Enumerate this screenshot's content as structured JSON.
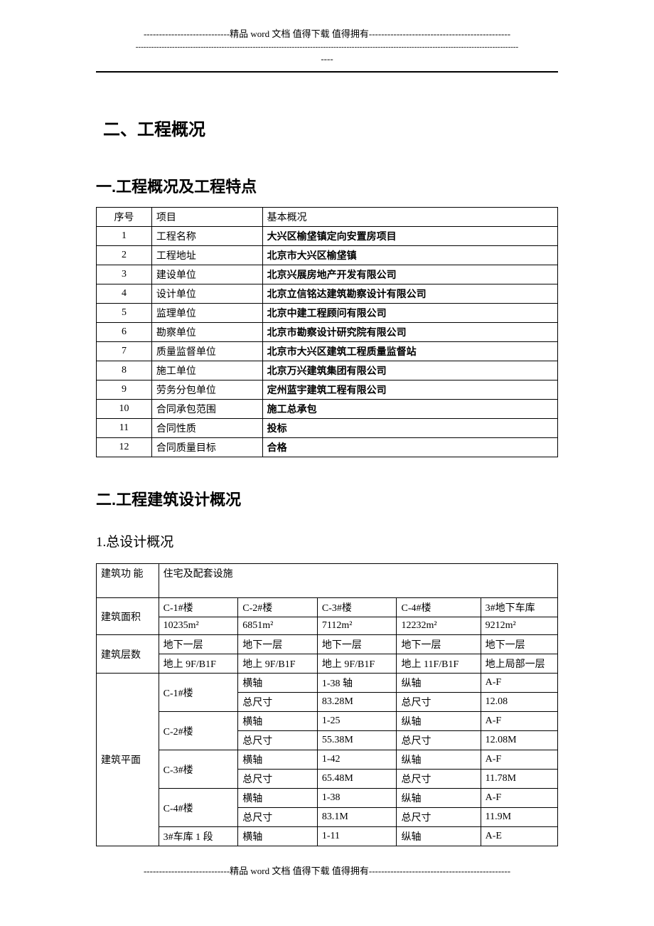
{
  "decor": {
    "dashes_left": "----------------------------",
    "dashes_right": "----------------------------------------------",
    "mid_text": "精品 word 文档  值得下载  值得拥有",
    "long_dashes": "---------------------------------------------------------------------------------------------------------------------------------------------------",
    "tail": "----"
  },
  "headings": {
    "section": "二、工程概况",
    "sub1": "一.工程概况及工程特点",
    "sub2": "二.工程建筑设计概况",
    "sub3": "1.总设计概况"
  },
  "table1": {
    "headers": {
      "seq": "序号",
      "item": "项目",
      "desc": "基本概况"
    },
    "rows": [
      {
        "seq": "1",
        "item": "工程名称",
        "desc": "大兴区榆垡镇定向安置房项目"
      },
      {
        "seq": "2",
        "item": "工程地址",
        "desc": "北京市大兴区榆垡镇"
      },
      {
        "seq": "3",
        "item": "建设单位",
        "desc": "北京兴展房地产开发有限公司"
      },
      {
        "seq": "4",
        "item": "设计单位",
        "desc": "北京立信铭达建筑勘察设计有限公司"
      },
      {
        "seq": "5",
        "item": "监理单位",
        "desc": "北京中建工程顾问有限公司"
      },
      {
        "seq": "6",
        "item": "勘察单位",
        "desc": "北京市勘察设计研究院有限公司"
      },
      {
        "seq": "7",
        "item": "质量监督单位",
        "desc": "北京市大兴区建筑工程质量监督站"
      },
      {
        "seq": "8",
        "item": "施工单位",
        "desc": "北京万兴建筑集团有限公司"
      },
      {
        "seq": "9",
        "item": "劳务分包单位",
        "desc": "定州蓝宇建筑工程有限公司"
      },
      {
        "seq": "10",
        "item": "合同承包范围",
        "desc": "施工总承包"
      },
      {
        "seq": "11",
        "item": "合同性质",
        "desc": "投标"
      },
      {
        "seq": "12",
        "item": "合同质量目标",
        "desc": "合格"
      }
    ]
  },
  "table2": {
    "labels": {
      "func": "建筑功  能",
      "func_val": "住宅及配套设施",
      "area": "建筑面积",
      "floors": "建筑层数",
      "plan": "建筑平面",
      "haxis": "横轴",
      "vaxis": "纵轴",
      "total": "总尺寸",
      "b1": "C-1#楼",
      "b2": "C-2#楼",
      "b3": "C-3#楼",
      "b4": "C-4#楼",
      "g3": "3#地下车库",
      "g3seg": "3#车库 1 段"
    },
    "area": {
      "b1": "10235m²",
      "b2": "6851m²",
      "b3": "7112m²",
      "b4": "12232m²",
      "g3": "9212m²"
    },
    "floors_u": {
      "all": "地下一层"
    },
    "floors_g": {
      "b1": "地上 9F/B1F",
      "b2": "地上 9F/B1F",
      "b3": "地上 9F/B1F",
      "b4": "地上 11F/B1F",
      "g3": "地上局部一层"
    },
    "plan": {
      "b1": {
        "haxis": "1-38 轴",
        "vaxis": "A-F",
        "hsize": "83.28M",
        "vsize": "12.08"
      },
      "b2": {
        "haxis": "1-25",
        "vaxis": "A-F",
        "hsize": "55.38M",
        "vsize": "12.08M"
      },
      "b3": {
        "haxis": "1-42",
        "vaxis": "A-F",
        "hsize": "65.48M",
        "vsize": "11.78M"
      },
      "b4": {
        "haxis": "1-38",
        "vaxis": "A-F",
        "hsize": "83.1M",
        "vsize": "11.9M"
      },
      "g3": {
        "haxis": "1-11",
        "vaxis": "A-E"
      }
    }
  }
}
